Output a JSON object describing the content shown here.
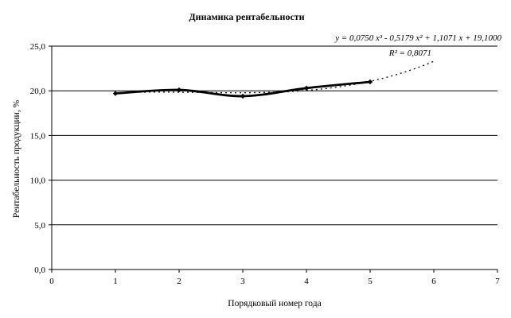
{
  "chart_data": {
    "type": "line",
    "title": "Динамика рентабельности",
    "xlabel": "Порядковый номер года",
    "ylabel": "Рентабельность продукции, %",
    "xlim": [
      0,
      7
    ],
    "ylim": [
      0,
      25
    ],
    "x_ticks": [
      "0",
      "1",
      "2",
      "3",
      "4",
      "5",
      "6",
      "7"
    ],
    "y_ticks": [
      "0,0",
      "5,0",
      "10,0",
      "15,0",
      "20,0",
      "25,0"
    ],
    "grid": "horizontal",
    "series": [
      {
        "x": [
          1,
          2,
          3,
          4,
          5
        ],
        "values": [
          19.7,
          20.1,
          19.4,
          20.3,
          21.0
        ]
      }
    ],
    "trendline": {
      "kind": "polynomial-3",
      "coefficients": [
        0.075,
        -0.5179,
        1.1071,
        19.1
      ],
      "x_range": [
        1,
        6
      ],
      "equation": "y = 0,0750 x³ - 0,5179 x² + 1,1071 x + 19,1000",
      "r_squared": "R² = 0,8071"
    }
  }
}
